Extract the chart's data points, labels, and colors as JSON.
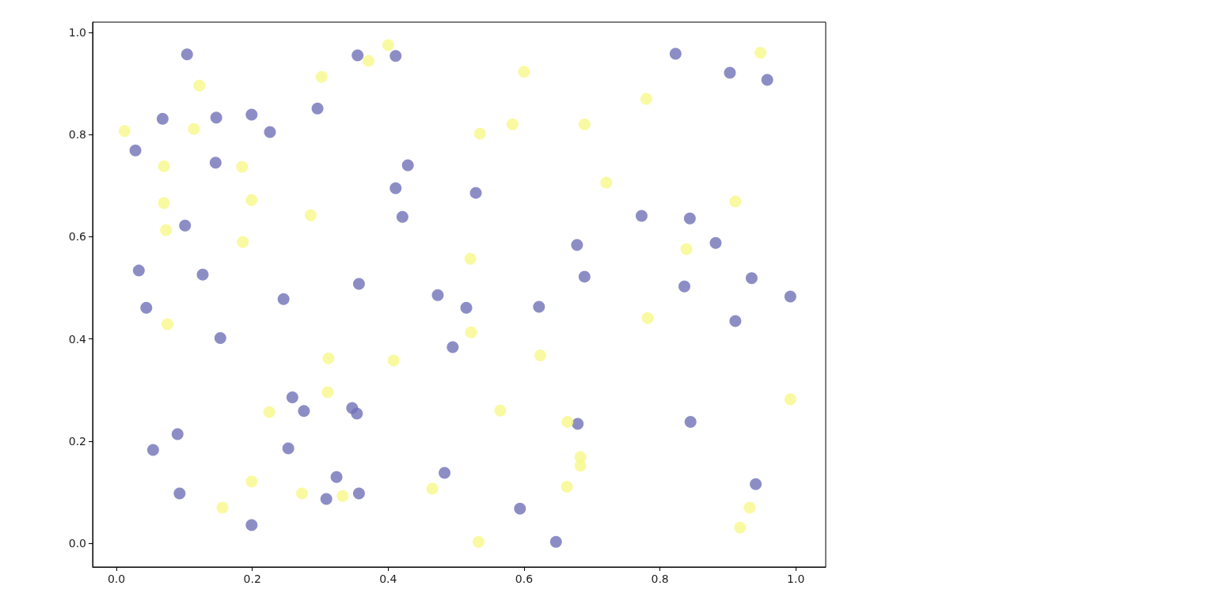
{
  "chart_data": {
    "type": "scatter",
    "marker": "circle",
    "grid": false,
    "xlim": [
      -0.035,
      1.044
    ],
    "ylim": [
      -0.046,
      1.02
    ],
    "xticks": [
      {
        "value": 0,
        "label": "0.0"
      },
      {
        "value": 0.2,
        "label": "0.2"
      },
      {
        "value": 0.4,
        "label": "0.4"
      },
      {
        "value": 0.6,
        "label": "0.6"
      },
      {
        "value": 0.8,
        "label": "0.8"
      },
      {
        "value": 1,
        "label": "1.0"
      }
    ],
    "yticks": [
      {
        "value": 0,
        "label": "0.0"
      },
      {
        "value": 0.2,
        "label": "0.2"
      },
      {
        "value": 0.4,
        "label": "0.4"
      },
      {
        "value": 0.6,
        "label": "0.6"
      },
      {
        "value": 0.8,
        "label": "0.8"
      },
      {
        "value": 1,
        "label": "1.0"
      }
    ],
    "series": [
      {
        "color": "#7070b8",
        "x": [
          0.104,
          0.028,
          0.068,
          0.147,
          0.199,
          0.226,
          0.146,
          0.296,
          0.355,
          0.411,
          0.429,
          0.411,
          0.421,
          0.101,
          0.033,
          0.127,
          0.044,
          0.246,
          0.357,
          0.153,
          0.473,
          0.515,
          0.495,
          0.529,
          0.622,
          0.678,
          0.689,
          0.773,
          0.844,
          0.823,
          0.903,
          0.958,
          0.882,
          0.836,
          0.935,
          0.992,
          0.911,
          0.845,
          0.941,
          0.679,
          0.594,
          0.647,
          0.483,
          0.357,
          0.324,
          0.309,
          0.199,
          0.253,
          0.259,
          0.276,
          0.347,
          0.354,
          0.09,
          0.054,
          0.093
        ],
        "values": [
          0.957,
          0.769,
          0.831,
          0.833,
          0.839,
          0.805,
          0.745,
          0.851,
          0.955,
          0.954,
          0.74,
          0.695,
          0.639,
          0.622,
          0.534,
          0.526,
          0.461,
          0.478,
          0.508,
          0.402,
          0.486,
          0.461,
          0.384,
          0.686,
          0.463,
          0.584,
          0.522,
          0.641,
          0.636,
          0.958,
          0.921,
          0.907,
          0.588,
          0.503,
          0.519,
          0.483,
          0.435,
          0.238,
          0.116,
          0.234,
          0.068,
          0.003,
          0.138,
          0.098,
          0.13,
          0.087,
          0.036,
          0.186,
          0.286,
          0.259,
          0.265,
          0.254,
          0.214,
          0.183,
          0.098
        ]
      },
      {
        "color": "#f7f78a",
        "x": [
          0.012,
          0.122,
          0.114,
          0.07,
          0.07,
          0.073,
          0.075,
          0.185,
          0.199,
          0.186,
          0.286,
          0.302,
          0.4,
          0.371,
          0.535,
          0.6,
          0.583,
          0.689,
          0.721,
          0.78,
          0.948,
          0.911,
          0.839,
          0.521,
          0.522,
          0.782,
          0.624,
          0.312,
          0.408,
          0.311,
          0.225,
          0.992,
          0.565,
          0.664,
          0.683,
          0.683,
          0.663,
          0.465,
          0.333,
          0.273,
          0.199,
          0.156,
          0.533,
          0.932,
          0.918
        ],
        "values": [
          0.807,
          0.896,
          0.811,
          0.738,
          0.666,
          0.613,
          0.429,
          0.737,
          0.672,
          0.59,
          0.642,
          0.913,
          0.975,
          0.944,
          0.802,
          0.923,
          0.82,
          0.82,
          0.706,
          0.87,
          0.96,
          0.669,
          0.576,
          0.557,
          0.413,
          0.441,
          0.368,
          0.362,
          0.358,
          0.296,
          0.257,
          0.282,
          0.26,
          0.238,
          0.169,
          0.152,
          0.111,
          0.107,
          0.093,
          0.098,
          0.121,
          0.07,
          0.003,
          0.07,
          0.031
        ]
      }
    ]
  }
}
